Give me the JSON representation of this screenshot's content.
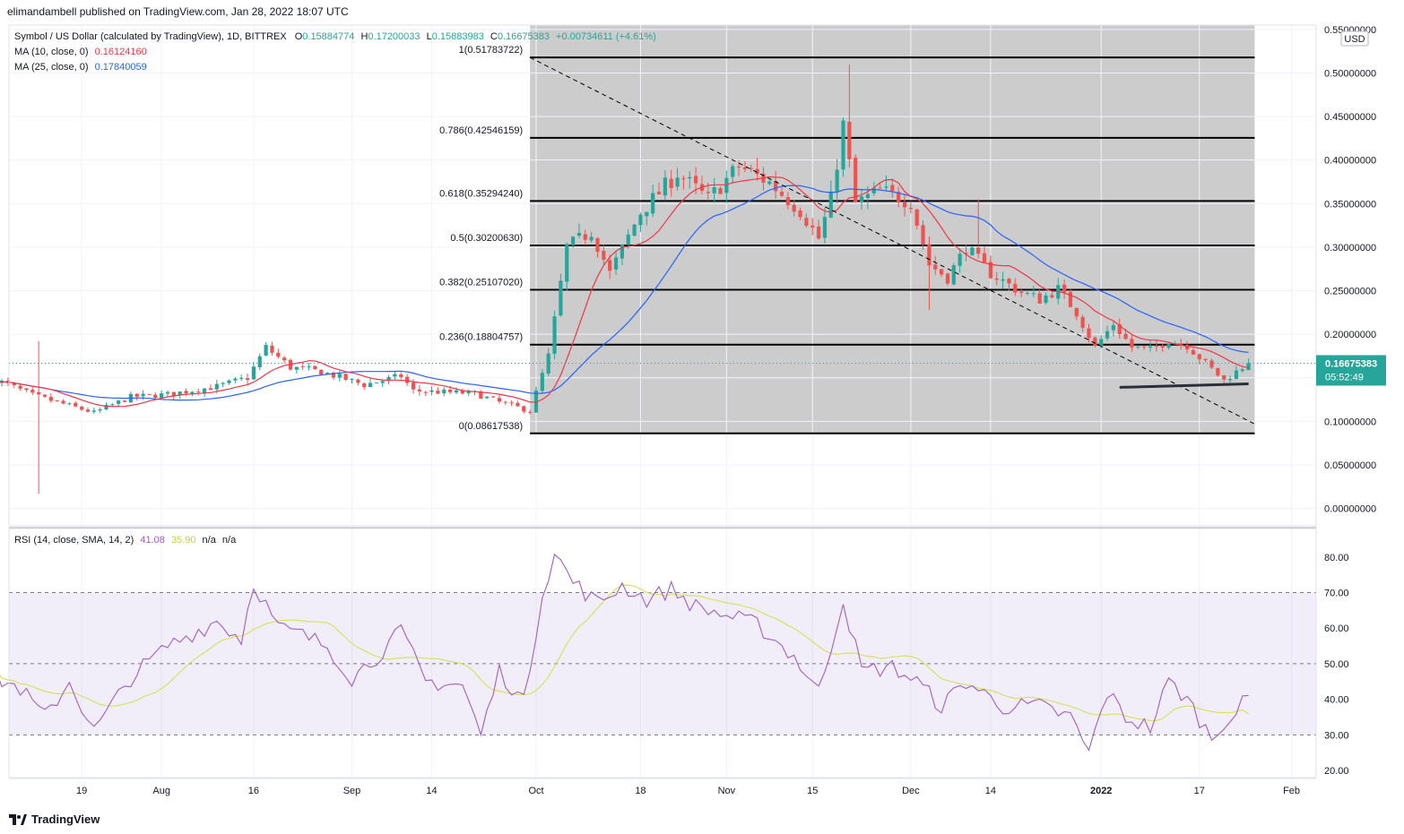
{
  "publisher": "elimandambell published on TradingView.com, Jan 28, 2022 18:07 UTC",
  "brand": "TradingView",
  "legend": {
    "symbol": "Symbol / US Dollar (calculated by TradingView), 1D, BITTREX",
    "o_label": "O",
    "o": "0.15884774",
    "h_label": "H",
    "h": "0.17200033",
    "l_label": "L",
    "l": "0.15883983",
    "c_label": "C",
    "c": "0.16675383",
    "change": "+0.00734611 (+4.61%)",
    "ma10_label": "MA (10, close, 0)",
    "ma10": "0.16124160",
    "ma25_label": "MA (25, close, 0)",
    "ma25": "0.17840059",
    "rsi_label": "RSI (14, close, SMA, 14, 2)",
    "rsi": "41.08",
    "rsi_ma": "35.90",
    "na1": "n/a",
    "na2": "n/a"
  },
  "currency": "USD",
  "price_label": {
    "value": "0.16675383",
    "countdown": "05:52:49"
  },
  "colors": {
    "up": "#26a69a",
    "down": "#ef5350",
    "ma10": "#f23645",
    "ma25": "#2962ff",
    "rsi": "#9c5fc4",
    "rsi_ma": "#d4e157",
    "fib_bg": "#cccccc",
    "rsi_band": "#7e57c2"
  },
  "chart_data": [
    {
      "type": "candlestick",
      "ylim": [
        -0.02,
        0.555
      ],
      "y_ticks": [
        "0.00000000",
        "0.05000000",
        "0.10000000",
        "0.15000000",
        "0.20000000",
        "0.25000000",
        "0.30000000",
        "0.35000000",
        "0.40000000",
        "0.45000000",
        "0.50000000",
        "0.55000000"
      ],
      "y_tick_values": [
        0,
        0.05,
        0.1,
        0.15,
        0.2,
        0.25,
        0.3,
        0.35,
        0.4,
        0.45,
        0.5,
        0.55
      ],
      "x_ticks": [
        {
          "label": "19",
          "day": -74
        },
        {
          "label": "Aug",
          "day": -61
        },
        {
          "label": "16",
          "day": -46
        },
        {
          "label": "Sep",
          "day": -30
        },
        {
          "label": "14",
          "day": -17
        },
        {
          "label": "Oct",
          "day": 0
        },
        {
          "label": "18",
          "day": 17
        },
        {
          "label": "Nov",
          "day": 31
        },
        {
          "label": "15",
          "day": 45
        },
        {
          "label": "Dec",
          "day": 61
        },
        {
          "label": "14",
          "day": 74
        },
        {
          "label": "2022",
          "day": 92
        },
        {
          "label": "17",
          "day": 108
        },
        {
          "label": "Feb",
          "day": 123
        }
      ],
      "fib_levels": [
        {
          "ratio": "1",
          "label": "1(0.51783722)",
          "value": 0.51783722
        },
        {
          "ratio": "0.786",
          "label": "0.786(0.42546159)",
          "value": 0.42546159
        },
        {
          "ratio": "0.618",
          "label": "0.618(0.35294240)",
          "value": 0.3529424
        },
        {
          "ratio": "0.5",
          "label": "0.5(0.30200630)",
          "value": 0.3020063
        },
        {
          "ratio": "0.382",
          "label": "0.382(0.25107020)",
          "value": 0.2510702
        },
        {
          "ratio": "0.236",
          "label": "0.236(0.18804757)",
          "value": 0.18804757
        },
        {
          "ratio": "0",
          "label": "0(0.08617538)",
          "value": 0.08617538
        }
      ],
      "fib_range_days": [
        -1,
        117
      ],
      "trendline": {
        "from": [
          -1,
          0.5178
        ],
        "to": [
          117,
          0.097
        ]
      },
      "support_line": {
        "from": [
          95,
          0.139
        ],
        "to": [
          116,
          0.143
        ]
      },
      "last_close": 0.16675383,
      "anchors": [
        {
          "day": -88,
          "price": 0.148
        },
        {
          "day": -82,
          "price": 0.13
        },
        {
          "day": -76,
          "price": 0.118
        },
        {
          "day": -72,
          "price": 0.11
        },
        {
          "day": -66,
          "price": 0.128
        },
        {
          "day": -60,
          "price": 0.131
        },
        {
          "day": -52,
          "price": 0.14
        },
        {
          "day": -47,
          "price": 0.15
        },
        {
          "day": -44,
          "price": 0.185
        },
        {
          "day": -40,
          "price": 0.162
        },
        {
          "day": -35,
          "price": 0.157
        },
        {
          "day": -28,
          "price": 0.142
        },
        {
          "day": -22,
          "price": 0.152
        },
        {
          "day": -20,
          "price": 0.135
        },
        {
          "day": -10,
          "price": 0.132
        },
        {
          "day": -6,
          "price": 0.122
        },
        {
          "day": -1,
          "price": 0.112
        },
        {
          "day": 2,
          "price": 0.175
        },
        {
          "day": 5,
          "price": 0.3
        },
        {
          "day": 9,
          "price": 0.318
        },
        {
          "day": 12,
          "price": 0.27
        },
        {
          "day": 17,
          "price": 0.34
        },
        {
          "day": 23,
          "price": 0.385
        },
        {
          "day": 28,
          "price": 0.355
        },
        {
          "day": 33,
          "price": 0.393
        },
        {
          "day": 38,
          "price": 0.374
        },
        {
          "day": 43,
          "price": 0.342
        },
        {
          "day": 46,
          "price": 0.31
        },
        {
          "day": 48,
          "price": 0.355
        },
        {
          "day": 50,
          "price": 0.44
        },
        {
          "day": 52,
          "price": 0.35
        },
        {
          "day": 56,
          "price": 0.365
        },
        {
          "day": 61,
          "price": 0.352
        },
        {
          "day": 64,
          "price": 0.28
        },
        {
          "day": 67,
          "price": 0.265
        },
        {
          "day": 70,
          "price": 0.3
        },
        {
          "day": 74,
          "price": 0.27
        },
        {
          "day": 79,
          "price": 0.248
        },
        {
          "day": 82,
          "price": 0.24
        },
        {
          "day": 85,
          "price": 0.252
        },
        {
          "day": 88,
          "price": 0.225
        },
        {
          "day": 91,
          "price": 0.185
        },
        {
          "day": 94,
          "price": 0.212
        },
        {
          "day": 97,
          "price": 0.185
        },
        {
          "day": 100,
          "price": 0.182
        },
        {
          "day": 103,
          "price": 0.193
        },
        {
          "day": 106,
          "price": 0.187
        },
        {
          "day": 110,
          "price": 0.16
        },
        {
          "day": 112,
          "price": 0.147
        },
        {
          "day": 114,
          "price": 0.157
        },
        {
          "day": 116,
          "price": 0.1668
        }
      ]
    },
    {
      "type": "line",
      "name": "RSI",
      "ylim": [
        18,
        88
      ],
      "y_ticks": [
        "20.00",
        "30.00",
        "40.00",
        "50.00",
        "60.00",
        "70.00",
        "80.00"
      ],
      "y_tick_values": [
        20,
        30,
        40,
        50,
        60,
        70,
        80
      ],
      "band": [
        30,
        70
      ],
      "midline": 50,
      "last_value": 41.08,
      "last_ma": 35.9,
      "anchors": [
        {
          "day": -88,
          "value": 46
        },
        {
          "day": -84,
          "value": 43
        },
        {
          "day": -80,
          "value": 35
        },
        {
          "day": -76,
          "value": 45
        },
        {
          "day": -72,
          "value": 31
        },
        {
          "day": -66,
          "value": 46
        },
        {
          "day": -60,
          "value": 55
        },
        {
          "day": -52,
          "value": 62
        },
        {
          "day": -48,
          "value": 57
        },
        {
          "day": -46,
          "value": 73
        },
        {
          "day": -42,
          "value": 60
        },
        {
          "day": -38,
          "value": 58
        },
        {
          "day": -34,
          "value": 55
        },
        {
          "day": -30,
          "value": 46
        },
        {
          "day": -26,
          "value": 52
        },
        {
          "day": -22,
          "value": 59
        },
        {
          "day": -18,
          "value": 45
        },
        {
          "day": -12,
          "value": 44
        },
        {
          "day": -9,
          "value": 30
        },
        {
          "day": -6,
          "value": 48
        },
        {
          "day": -2,
          "value": 39
        },
        {
          "day": 1,
          "value": 70
        },
        {
          "day": 3,
          "value": 81
        },
        {
          "day": 6,
          "value": 73
        },
        {
          "day": 10,
          "value": 67
        },
        {
          "day": 14,
          "value": 72
        },
        {
          "day": 18,
          "value": 68
        },
        {
          "day": 22,
          "value": 71
        },
        {
          "day": 26,
          "value": 66
        },
        {
          "day": 30,
          "value": 64
        },
        {
          "day": 36,
          "value": 61
        },
        {
          "day": 42,
          "value": 52
        },
        {
          "day": 46,
          "value": 42
        },
        {
          "day": 50,
          "value": 68
        },
        {
          "day": 53,
          "value": 48
        },
        {
          "day": 58,
          "value": 49
        },
        {
          "day": 62,
          "value": 45
        },
        {
          "day": 66,
          "value": 38
        },
        {
          "day": 70,
          "value": 45
        },
        {
          "day": 76,
          "value": 38
        },
        {
          "day": 82,
          "value": 38
        },
        {
          "day": 87,
          "value": 35
        },
        {
          "day": 90,
          "value": 25
        },
        {
          "day": 93,
          "value": 42
        },
        {
          "day": 96,
          "value": 35
        },
        {
          "day": 100,
          "value": 32
        },
        {
          "day": 103,
          "value": 45
        },
        {
          "day": 106,
          "value": 40
        },
        {
          "day": 110,
          "value": 29
        },
        {
          "day": 112,
          "value": 34
        },
        {
          "day": 114,
          "value": 36
        },
        {
          "day": 116,
          "value": 41
        }
      ]
    }
  ]
}
